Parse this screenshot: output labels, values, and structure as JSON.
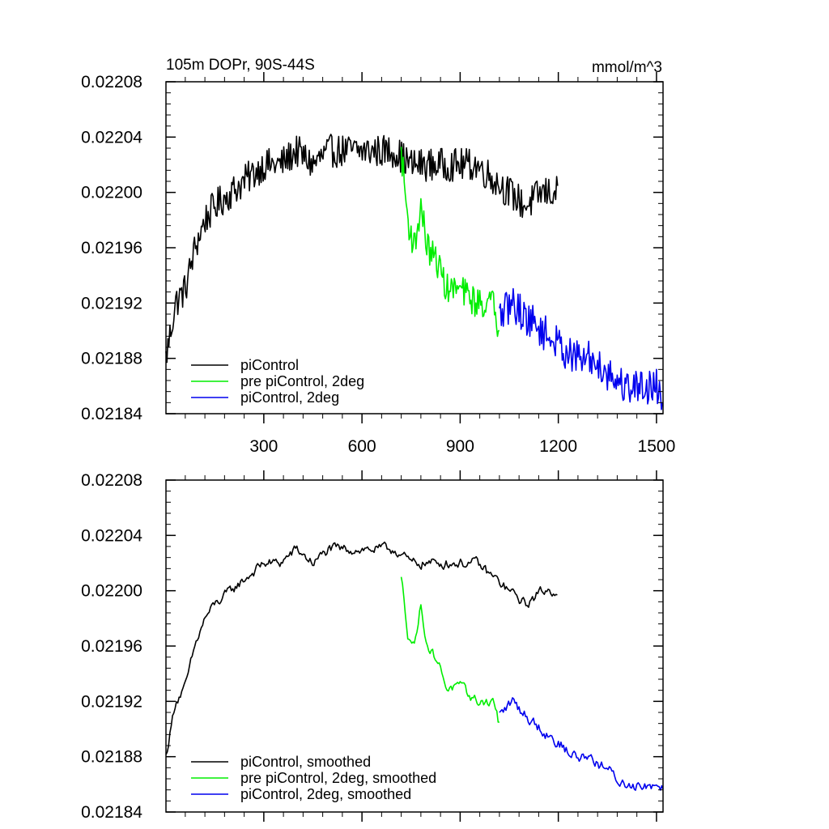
{
  "chart_data": [
    {
      "type": "line",
      "title": "105m DOPr, 90S-44S",
      "units": "mmol/m^3",
      "xlim": [
        1,
        1520
      ],
      "ylim": [
        0.02184,
        0.02208
      ],
      "x_ticks": [
        300,
        600,
        900,
        1200,
        1500
      ],
      "x_tick_labels": [
        "300",
        "600",
        "900",
        "1200",
        "1500"
      ],
      "y_ticks": [
        0.02184,
        0.02188,
        0.02192,
        0.02196,
        0.022,
        0.02204,
        0.02208
      ],
      "y_tick_labels": [
        "0.02184",
        "0.02188",
        "0.02192",
        "0.02196",
        "0.02200",
        "0.02204",
        "0.02208"
      ],
      "legend_position": "bottom-left",
      "series": [
        {
          "name": "piControl",
          "color": "#000000",
          "noise": 1.2e-05,
          "x": [
            1,
            30,
            60,
            90,
            120,
            150,
            200,
            250,
            300,
            350,
            400,
            450,
            500,
            550,
            600,
            650,
            700,
            750,
            800,
            850,
            900,
            950,
            1000,
            1050,
            1100,
            1150,
            1200
          ],
          "y": [
            0.02188,
            0.02192,
            0.02193,
            0.02196,
            0.02198,
            0.02199,
            0.022,
            0.02201,
            0.02202,
            0.02202,
            0.02203,
            0.02202,
            0.02203,
            0.02203,
            0.02203,
            0.02203,
            0.02203,
            0.02202,
            0.02202,
            0.02202,
            0.02202,
            0.02202,
            0.02201,
            0.022,
            0.02199,
            0.022,
            0.022
          ]
        },
        {
          "name": "pre piControl, 2deg",
          "color": "#00ee00",
          "noise": 1.1e-05,
          "x": [
            720,
            740,
            760,
            780,
            800,
            830,
            860,
            900,
            950,
            1000,
            1020
          ],
          "y": [
            0.02203,
            0.02198,
            0.02196,
            0.02199,
            0.02196,
            0.02195,
            0.02193,
            0.02193,
            0.02192,
            0.02192,
            0.0219
          ],
          "fixed": [
            [
              720,
              0.022033
            ],
            [
              1018,
              0.0219
            ]
          ]
        },
        {
          "name": "piControl, 2deg",
          "color": "#0000ee",
          "noise": 1.3e-05,
          "x": [
            1020,
            1060,
            1100,
            1150,
            1200,
            1250,
            1300,
            1350,
            1400,
            1450,
            1500,
            1520
          ],
          "y": [
            0.02191,
            0.02192,
            0.02191,
            0.0219,
            0.02189,
            0.02188,
            0.02188,
            0.02187,
            0.02186,
            0.02186,
            0.02186,
            0.02185
          ]
        }
      ]
    },
    {
      "type": "line",
      "title": "",
      "units": "",
      "xlim": [
        1,
        1520
      ],
      "ylim": [
        0.02184,
        0.02208
      ],
      "x_ticks": [
        300,
        600,
        900,
        1200,
        1500
      ],
      "x_tick_labels": [],
      "y_ticks": [
        0.02184,
        0.02188,
        0.02192,
        0.02196,
        0.022,
        0.02204,
        0.02208
      ],
      "y_tick_labels": [
        "0.02184",
        "0.02188",
        "0.02192",
        "0.02196",
        "0.02200",
        "0.02204",
        "0.02208"
      ],
      "legend_position": "bottom-left",
      "series": [
        {
          "name": "piControl, smoothed",
          "color": "#000000",
          "noise": 5e-06,
          "x": [
            1,
            30,
            60,
            90,
            120,
            150,
            200,
            250,
            300,
            350,
            400,
            450,
            500,
            550,
            600,
            650,
            700,
            750,
            800,
            850,
            900,
            950,
            1000,
            1050,
            1100,
            1150,
            1200
          ],
          "y": [
            0.02188,
            0.02192,
            0.02193,
            0.02196,
            0.02198,
            0.02199,
            0.022,
            0.02201,
            0.02202,
            0.02202,
            0.02203,
            0.02202,
            0.02203,
            0.02203,
            0.02203,
            0.02203,
            0.02203,
            0.02202,
            0.02202,
            0.02202,
            0.02202,
            0.02202,
            0.02201,
            0.022,
            0.02199,
            0.022,
            0.022
          ]
        },
        {
          "name": "pre piControl, 2deg, smoothed",
          "color": "#00ee00",
          "noise": 5e-06,
          "x": [
            720,
            740,
            760,
            780,
            800,
            830,
            860,
            900,
            950,
            1000,
            1020
          ],
          "y": [
            0.02201,
            0.02197,
            0.02196,
            0.02199,
            0.02196,
            0.02195,
            0.02193,
            0.02193,
            0.02192,
            0.02192,
            0.02191
          ],
          "fixed": [
            [
              720,
              0.02201
            ],
            [
              1018,
              0.021905
            ]
          ]
        },
        {
          "name": "piControl, 2deg, smoothed",
          "color": "#0000ee",
          "noise": 6e-06,
          "x": [
            1020,
            1060,
            1100,
            1150,
            1200,
            1250,
            1300,
            1350,
            1400,
            1450,
            1500,
            1520
          ],
          "y": [
            0.02191,
            0.02192,
            0.02191,
            0.0219,
            0.02189,
            0.02188,
            0.02188,
            0.02187,
            0.02186,
            0.02186,
            0.02186,
            0.02186
          ]
        }
      ]
    }
  ]
}
